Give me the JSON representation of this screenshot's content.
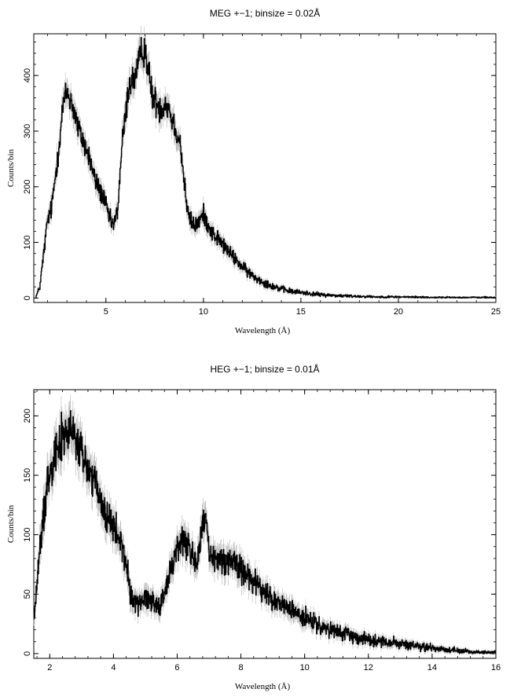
{
  "chart_data": [
    {
      "type": "line",
      "title": "MEG +−1; binsize = 0.02Å",
      "xlabel": "Wavelength (Å)",
      "ylabel": "Counts/bin",
      "xlim": [
        1.3,
        25
      ],
      "ylim": [
        -8,
        475
      ],
      "xticks": [
        5,
        10,
        15,
        20,
        25
      ],
      "yticks": [
        0,
        100,
        200,
        300,
        400
      ],
      "series": [
        {
          "style": "black histogram with grey error bars",
          "x": [
            1.4,
            1.6,
            1.8,
            2.0,
            2.2,
            2.4,
            2.6,
            2.8,
            3.0,
            3.2,
            3.4,
            3.6,
            3.8,
            4.0,
            4.2,
            4.4,
            4.6,
            4.8,
            5.0,
            5.2,
            5.4,
            5.6,
            5.8,
            6.0,
            6.2,
            6.4,
            6.6,
            6.8,
            7.0,
            7.2,
            7.4,
            7.6,
            7.8,
            8.0,
            8.2,
            8.4,
            8.6,
            8.8,
            9.0,
            9.2,
            9.4,
            9.6,
            9.8,
            10.0,
            10.2,
            10.4,
            10.6,
            10.8,
            11.0,
            11.5,
            12.0,
            12.5,
            13.0,
            13.5,
            14.0,
            14.5,
            15.0,
            16.0,
            17.0,
            18.0,
            19.0,
            20.0,
            22.0,
            25.0
          ],
          "y": [
            2,
            20,
            80,
            140,
            160,
            220,
            280,
            350,
            370,
            355,
            330,
            300,
            285,
            265,
            245,
            215,
            200,
            185,
            165,
            140,
            130,
            160,
            270,
            330,
            390,
            390,
            410,
            440,
            450,
            400,
            360,
            350,
            340,
            350,
            345,
            320,
            300,
            280,
            210,
            150,
            135,
            130,
            140,
            150,
            135,
            120,
            110,
            105,
            95,
            75,
            55,
            40,
            30,
            22,
            16,
            12,
            10,
            6,
            4,
            3,
            2,
            2,
            1,
            1
          ]
        }
      ]
    },
    {
      "type": "line",
      "title": "HEG +−1; binsize = 0.01Å",
      "xlabel": "Wavelength (Å)",
      "ylabel": "Counts/bin",
      "xlim": [
        1.5,
        16
      ],
      "ylim": [
        -4,
        222
      ],
      "xticks": [
        2,
        4,
        6,
        8,
        10,
        12,
        14,
        16
      ],
      "yticks": [
        0,
        50,
        100,
        150,
        200
      ],
      "series": [
        {
          "style": "black histogram with grey error bars",
          "x": [
            1.5,
            1.6,
            1.7,
            1.8,
            1.9,
            2.0,
            2.1,
            2.2,
            2.3,
            2.4,
            2.5,
            2.6,
            2.7,
            2.8,
            2.9,
            3.0,
            3.2,
            3.4,
            3.6,
            3.8,
            4.0,
            4.2,
            4.4,
            4.5,
            4.6,
            4.8,
            5.0,
            5.2,
            5.4,
            5.6,
            5.8,
            6.0,
            6.2,
            6.4,
            6.6,
            6.8,
            6.9,
            7.0,
            7.2,
            7.4,
            7.6,
            7.8,
            8.0,
            8.2,
            8.4,
            8.6,
            8.8,
            9.0,
            9.5,
            10.0,
            10.5,
            11.0,
            11.5,
            12.0,
            12.5,
            13.0,
            13.5,
            14.0,
            14.5,
            15.0,
            15.5,
            16.0
          ],
          "y": [
            30,
            60,
            90,
            115,
            140,
            155,
            165,
            175,
            178,
            180,
            185,
            188,
            186,
            180,
            175,
            168,
            155,
            145,
            125,
            115,
            105,
            95,
            75,
            55,
            45,
            42,
            48,
            45,
            40,
            50,
            70,
            90,
            95,
            88,
            75,
            105,
            115,
            80,
            78,
            80,
            78,
            78,
            70,
            68,
            60,
            55,
            50,
            45,
            38,
            30,
            22,
            18,
            15,
            12,
            10,
            8,
            6,
            5,
            3,
            2,
            1,
            1
          ]
        }
      ]
    }
  ]
}
